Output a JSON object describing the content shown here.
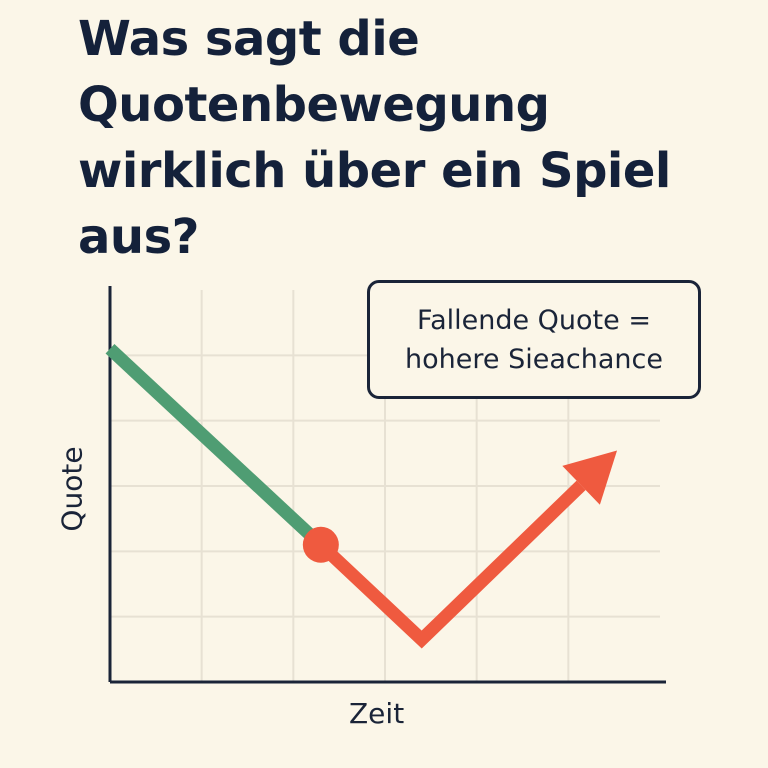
{
  "chart_data": {
    "type": "line",
    "title": "Was sagt die Quotenbewegung wirklich über ein Spiel aus?",
    "xlabel": "Zeit",
    "ylabel": "Quote",
    "ylim": [
      0,
      6
    ],
    "xlim": [
      0,
      6
    ],
    "grid": true,
    "series": [
      {
        "segment": "falling",
        "x": [
          0,
          2.3
        ],
        "y": [
          5.1,
          2.1
        ]
      },
      {
        "segment": "rising",
        "x": [
          2.3,
          3.4,
          5.5
        ],
        "y": [
          2.1,
          0.65,
          3.5
        ]
      }
    ],
    "annotations": {
      "callout": [
        "Fallende Quote =",
        "hohere Sieachance"
      ]
    },
    "colors": {
      "falling_line": "#4f9d73",
      "rising_line": "#ef5a3f",
      "grid": "#e7e1d3",
      "axis": "#1a2438",
      "text": "#14213a",
      "background": "#fbf6e8"
    }
  }
}
